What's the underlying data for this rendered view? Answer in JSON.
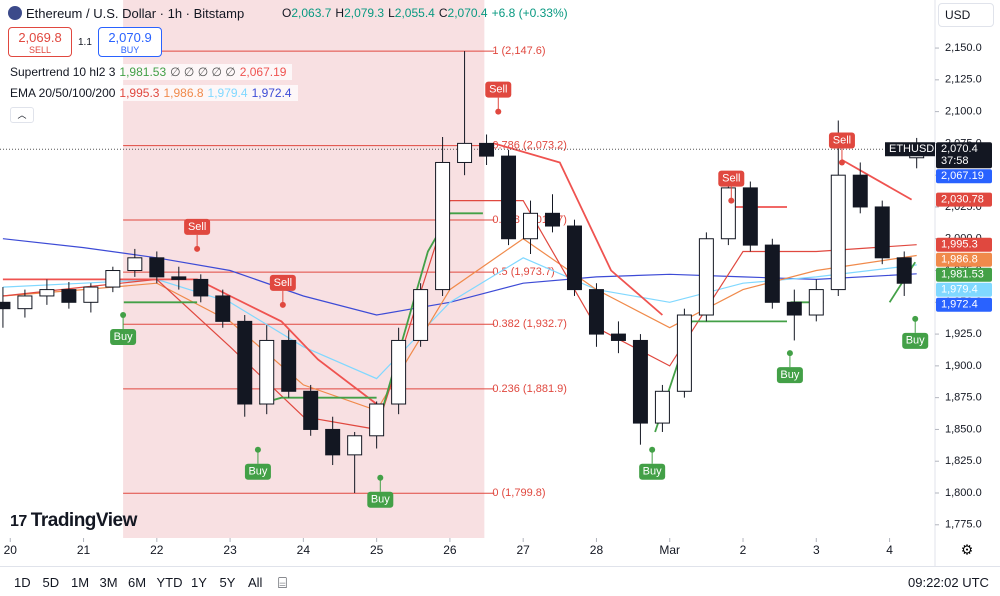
{
  "header": {
    "title": "Ethereum / U.S. Dollar · 1h · Bitstamp",
    "ohlc": [
      [
        "O",
        "2,063.7"
      ],
      [
        "H",
        "2,079.3"
      ],
      [
        "L",
        "2,055.4"
      ],
      [
        "C",
        "2,070.4"
      ]
    ],
    "change": "+6.8 (+0.33%)",
    "sell_price": "2,069.8",
    "sell_label": "SELL",
    "spread": "1.1",
    "buy_price": "2,070.9",
    "buy_label": "BUY",
    "currency": "USD",
    "supertrend": {
      "label": "Supertrend 10 hl2 3",
      "values": [
        "1,981.53",
        "∅ ∅ ∅ ∅ ∅",
        "2,067.19"
      ],
      "colors": [
        "#43a047",
        "#555555",
        "#ef5350"
      ]
    },
    "ema": {
      "label": "EMA 20/50/100/200",
      "values": [
        "1,995.3",
        "1,986.8",
        "1,979.4",
        "1,972.4"
      ],
      "colors": [
        "#e0483f",
        "#f08a4b",
        "#80d8ff",
        "#3d4bd6"
      ]
    }
  },
  "brand": "TradingView",
  "toolbar": {
    "ranges": [
      "1D",
      "5D",
      "1M",
      "3M",
      "6M",
      "YTD",
      "1Y",
      "5Y",
      "All"
    ],
    "time": "09:22:02 UTC"
  },
  "chart_data": {
    "type": "candlestick",
    "xlim": [
      -0.14,
      12.62
    ],
    "ylim": [
      1764.6,
      2187.8
    ],
    "xticks": [
      {
        "value": 0,
        "label": "20"
      },
      {
        "value": 1,
        "label": "21"
      },
      {
        "value": 2,
        "label": "22"
      },
      {
        "value": 3,
        "label": "23"
      },
      {
        "value": 4,
        "label": "24"
      },
      {
        "value": 5,
        "label": "25"
      },
      {
        "value": 6,
        "label": "26"
      },
      {
        "value": 7,
        "label": "27"
      },
      {
        "value": 8,
        "label": "28"
      },
      {
        "value": 9,
        "label": "Mar"
      },
      {
        "value": 10,
        "label": "2"
      },
      {
        "value": 11,
        "label": "3"
      },
      {
        "value": 12,
        "label": "4"
      }
    ],
    "yticks": [
      {
        "value": 1775,
        "label": "1,775.0"
      },
      {
        "value": 1800,
        "label": "1,800.0"
      },
      {
        "value": 1825,
        "label": "1,825.0"
      },
      {
        "value": 1850,
        "label": "1,850.0"
      },
      {
        "value": 1875,
        "label": "1,875.0"
      },
      {
        "value": 1900,
        "label": "1,900.0"
      },
      {
        "value": 1925,
        "label": "1,925.0"
      },
      {
        "value": 1950,
        "label": "1,950.0"
      },
      {
        "value": 1975,
        "label": "1,975.0"
      },
      {
        "value": 2000,
        "label": "2,000.0"
      },
      {
        "value": 2025,
        "label": "2,025.0"
      },
      {
        "value": 2050,
        "label": "2,050.0"
      },
      {
        "value": 2075,
        "label": "2,075.0"
      },
      {
        "value": 2100,
        "label": "2,100.0"
      },
      {
        "value": 2125,
        "label": "2,125.0"
      },
      {
        "value": 2150,
        "label": "2,150.0"
      }
    ],
    "up_color": "#ffffff",
    "down_color": "#131722",
    "x": [
      -0.1,
      0.2,
      0.5,
      0.8,
      1.1,
      1.4,
      1.7,
      2.0,
      2.3,
      2.6,
      2.9,
      3.2,
      3.5,
      3.8,
      4.1,
      4.4,
      4.7,
      5.0,
      5.3,
      5.6,
      5.9,
      6.2,
      6.5,
      6.8,
      7.1,
      7.4,
      7.7,
      8.0,
      8.3,
      8.6,
      8.9,
      9.2,
      9.5,
      9.8,
      10.1,
      10.4,
      10.7,
      11.0,
      11.3,
      11.6,
      11.9,
      12.2,
      12.37
    ],
    "open": [
      1950,
      1945,
      1955,
      1960,
      1950,
      1962,
      1975,
      1985,
      1970,
      1968,
      1955,
      1935,
      1870,
      1920,
      1880,
      1850,
      1830,
      1845,
      1870,
      1920,
      1960,
      2060,
      2075,
      2065,
      2000,
      2020,
      2010,
      1960,
      1925,
      1920,
      1855,
      1880,
      1940,
      2000,
      2040,
      1995,
      1950,
      1940,
      1960,
      2050,
      2025,
      1985,
      2063.7
    ],
    "high": [
      1962,
      1960,
      1968,
      1966,
      1965,
      1978,
      1992,
      1990,
      1978,
      1972,
      1960,
      1940,
      1932,
      1928,
      1885,
      1860,
      1848,
      1872,
      1930,
      1965,
      2080,
      2147.6,
      2082,
      2070,
      2030,
      2035,
      2015,
      1965,
      1935,
      1925,
      1885,
      1945,
      2005,
      2050,
      2045,
      2000,
      1960,
      1968,
      2093,
      2060,
      2030,
      1990,
      2079.3
    ],
    "low": [
      1930,
      1938,
      1948,
      1945,
      1942,
      1958,
      1970,
      1965,
      1960,
      1950,
      1930,
      1860,
      1862,
      1875,
      1845,
      1822,
      1800,
      1835,
      1862,
      1915,
      1955,
      2050,
      2058,
      1995,
      1988,
      2005,
      1955,
      1915,
      1910,
      1838,
      1848,
      1875,
      1935,
      1995,
      1990,
      1945,
      1920,
      1935,
      1955,
      2020,
      1980,
      1955,
      2055.4
    ],
    "close": [
      1945,
      1955,
      1960,
      1950,
      1962,
      1975,
      1985,
      1970,
      1968,
      1955,
      1935,
      1870,
      1920,
      1880,
      1850,
      1830,
      1845,
      1870,
      1920,
      1960,
      2060,
      2075,
      2065,
      2000,
      2020,
      2010,
      1960,
      1925,
      1920,
      1855,
      1880,
      1940,
      2000,
      2040,
      1995,
      1950,
      1940,
      1960,
      2050,
      2025,
      1985,
      1965,
      2070.4
    ],
    "overlays": [
      {
        "color": "#3d4bd6",
        "x": [
          -0.1,
          1,
          2,
          3,
          4,
          5,
          6,
          7,
          8,
          9,
          10,
          11,
          12.37
        ],
        "values": [
          2000,
          1993,
          1985,
          1975,
          1955,
          1940,
          1950,
          1965,
          1970,
          1972,
          1970,
          1968,
          1972.4
        ]
      },
      {
        "color": "#80d8ff",
        "x": [
          -0.1,
          1,
          2,
          3,
          4,
          5,
          6,
          7,
          8,
          9,
          10,
          11,
          12.37
        ],
        "values": [
          1962,
          1965,
          1968,
          1950,
          1915,
          1890,
          1950,
          1985,
          1960,
          1950,
          1965,
          1970,
          1979.4
        ]
      },
      {
        "color": "#f08a4b",
        "x": [
          -0.1,
          1,
          2,
          3,
          4,
          5,
          6,
          7,
          8,
          9,
          10,
          11,
          12.37
        ],
        "values": [
          1955,
          1960,
          1965,
          1935,
          1885,
          1865,
          1960,
          2000,
          1960,
          1930,
          1960,
          1975,
          1986.8
        ]
      },
      {
        "color": "#e0483f",
        "x": [
          -0.1,
          1,
          2,
          3,
          4,
          5,
          6,
          7,
          8,
          9,
          10,
          11,
          12.37
        ],
        "values": [
          1955,
          1962,
          1968,
          1915,
          1860,
          1850,
          2030,
          2030,
          1930,
          1900,
          1990,
          1990,
          1995.3
        ]
      }
    ],
    "supertrend": [
      {
        "color": "#43a047",
        "x": [
          1.55,
          2.55
        ],
        "values": [
          1950,
          1950
        ]
      },
      {
        "color": "#ef5350",
        "x": [
          -0.1,
          2.55,
          3.0,
          3.7,
          4.2,
          5.0
        ],
        "values": [
          1968,
          1968,
          1955,
          1935,
          1905,
          1870
        ]
      },
      {
        "color": "#43a047",
        "x": [
          3.4,
          3.7,
          5.0
        ],
        "values": [
          1870,
          1875,
          1875
        ]
      },
      {
        "color": "#43a047",
        "x": [
          5.05,
          5.7,
          6.0,
          6.45
        ],
        "values": [
          1860,
          1990,
          2020,
          2020
        ]
      },
      {
        "color": "#ef5350",
        "x": [
          6.6,
          7.5,
          8.2,
          8.9
        ],
        "values": [
          2075,
          2060,
          1975,
          1940
        ]
      },
      {
        "color": "#43a047",
        "x": [
          8.8,
          9.3,
          10.6
        ],
        "values": [
          1848,
          1935,
          1935
        ]
      },
      {
        "color": "#ef5350",
        "x": [
          9.9,
          10.6
        ],
        "values": [
          2025,
          2025
        ]
      },
      {
        "color": "#43a047",
        "x": [
          10.65,
          11.1
        ],
        "values": [
          1950,
          1950
        ]
      },
      {
        "color": "#ef5350",
        "x": [
          11.35,
          12.3
        ],
        "values": [
          2062,
          2030.78
        ]
      },
      {
        "color": "#43a047",
        "x": [
          12.0,
          12.35
        ],
        "values": [
          1950,
          1981.53
        ]
      }
    ],
    "fib": {
      "x": [
        1.54,
        6.47
      ],
      "color": "#e0483f",
      "fill": "#f6d5d8",
      "levels": [
        {
          "value": 2147.6,
          "label": "1 (2,147.6)"
        },
        {
          "value": 2073.2,
          "label": "0.786 (2,073.2)"
        },
        {
          "value": 2014.7,
          "label": "0.618 (2,014.7)"
        },
        {
          "value": 1973.7,
          "label": "0.5 (1,973.7)"
        },
        {
          "value": 1932.7,
          "label": "0.382 (1,932.7)"
        },
        {
          "value": 1881.9,
          "label": "0.236 (1,881.9)"
        },
        {
          "value": 1799.8,
          "label": "0 (1,799.8)"
        }
      ]
    },
    "signals": [
      {
        "label": "Buy",
        "color": "#43a047",
        "x": 1.54,
        "value": 1940
      },
      {
        "label": "Sell",
        "color": "#e0483f",
        "x": 2.55,
        "value": 1992
      },
      {
        "label": "Buy",
        "color": "#43a047",
        "x": 3.38,
        "value": 1834
      },
      {
        "label": "Sell",
        "color": "#e0483f",
        "x": 3.72,
        "value": 1948
      },
      {
        "label": "Buy",
        "color": "#43a047",
        "x": 5.05,
        "value": 1812
      },
      {
        "label": "Sell",
        "color": "#e0483f",
        "x": 6.66,
        "value": 2100
      },
      {
        "label": "Buy",
        "color": "#43a047",
        "x": 8.76,
        "value": 1834
      },
      {
        "label": "Sell",
        "color": "#e0483f",
        "x": 9.84,
        "value": 2030
      },
      {
        "label": "Buy",
        "color": "#43a047",
        "x": 10.64,
        "value": 1910
      },
      {
        "label": "Sell",
        "color": "#e0483f",
        "x": 11.35,
        "value": 2060
      },
      {
        "label": "Buy",
        "color": "#43a047",
        "x": 12.35,
        "value": 1937
      }
    ],
    "last_price_label": "ETHUSD",
    "countdown": "37:58",
    "price_tags": [
      {
        "value": 2070.4,
        "label": "2,070.4",
        "color": "#131722"
      },
      {
        "value": 2067.19,
        "label": "2,067.19",
        "color": "#2962ff"
      },
      {
        "value": 2030.78,
        "label": "2,030.78",
        "color": "#e0483f"
      },
      {
        "value": 1995.3,
        "label": "1,995.3",
        "color": "#e0483f"
      },
      {
        "value": 1986.8,
        "label": "1,986.8",
        "color": "#f08a4b"
      },
      {
        "value": 1981.53,
        "label": "1,981.53",
        "color": "#43a047"
      },
      {
        "value": 1979.4,
        "label": "1,979.4",
        "color": "#80d8ff"
      },
      {
        "value": 1972.4,
        "label": "1,972.4",
        "color": "#2962ff"
      }
    ]
  }
}
